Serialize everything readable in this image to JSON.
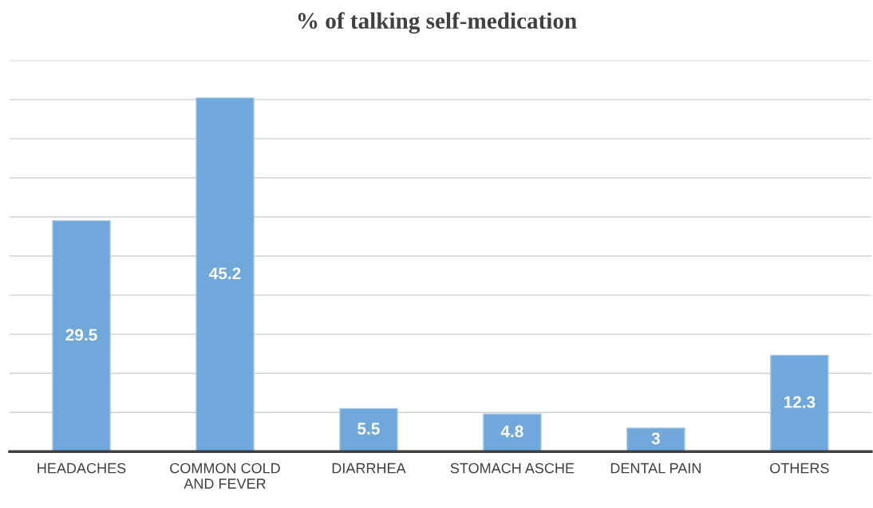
{
  "chart_data": {
    "type": "bar",
    "title": "% of talking self-medication",
    "categories": [
      "HEADACHES",
      "COMMON COLD\nAND FEVER",
      "DIARRHEA",
      "STOMACH ASCHE",
      "DENTAL PAIN",
      "OTHERS"
    ],
    "values": [
      29.5,
      45.2,
      5.5,
      4.8,
      3,
      12.3
    ],
    "color": "#70a8db",
    "ylim": [
      0,
      50
    ],
    "yticks": [
      {
        "value": 0,
        "label": null
      },
      {
        "value": 5,
        "label": null
      },
      {
        "value": 10,
        "label": null
      },
      {
        "value": 15,
        "label": null
      },
      {
        "value": 20,
        "label": null
      },
      {
        "value": 25,
        "label": null
      },
      {
        "value": 30,
        "label": null
      },
      {
        "value": 35,
        "label": null
      },
      {
        "value": 40,
        "label": null
      },
      {
        "value": 45,
        "label": null
      },
      {
        "value": 50,
        "label": null
      }
    ],
    "tick_labels": "x",
    "grid": "y",
    "data_labels": true
  }
}
